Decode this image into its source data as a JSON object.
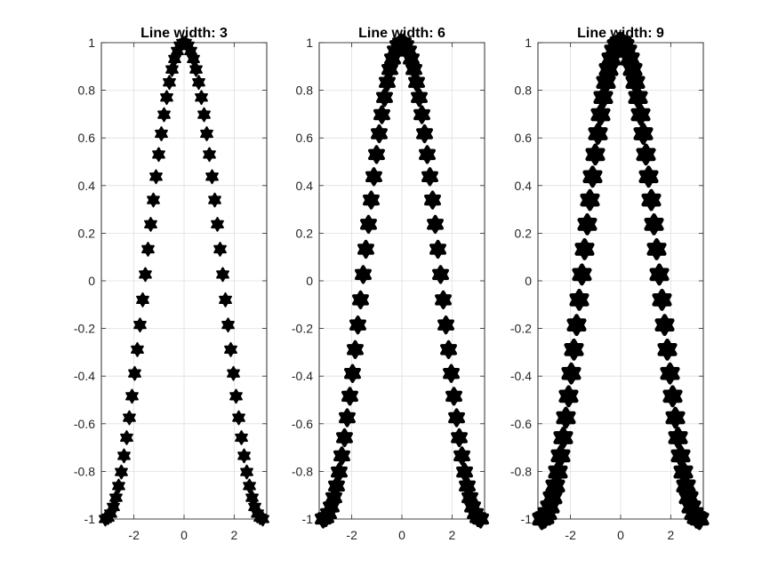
{
  "chart_data": [
    {
      "type": "scatter",
      "title": "Line width: 3",
      "xlabel": "",
      "ylabel": "",
      "xlim": [
        -3.3,
        3.3
      ],
      "ylim": [
        -1,
        1
      ],
      "xticks": [
        -2,
        0,
        2
      ],
      "yticks": [
        -1,
        -0.8,
        -0.6,
        -0.4,
        -0.2,
        0,
        0.2,
        0.4,
        0.6,
        0.8,
        1
      ],
      "grid": true,
      "marker": "hexagram",
      "marker_color": "#000000",
      "line_width": 3,
      "series": [
        {
          "function": "cos(x)",
          "x_range": [
            -3.1416,
            3.1416
          ],
          "point_count": 60
        }
      ]
    },
    {
      "type": "scatter",
      "title": "Line width: 6",
      "xlabel": "",
      "ylabel": "",
      "xlim": [
        -3.3,
        3.3
      ],
      "ylim": [
        -1,
        1
      ],
      "xticks": [
        -2,
        0,
        2
      ],
      "yticks": [
        -1,
        -0.8,
        -0.6,
        -0.4,
        -0.2,
        0,
        0.2,
        0.4,
        0.6,
        0.8,
        1
      ],
      "grid": true,
      "marker": "hexagram",
      "marker_color": "#000000",
      "line_width": 6,
      "series": [
        {
          "function": "cos(x)",
          "x_range": [
            -3.1416,
            3.1416
          ],
          "point_count": 60
        }
      ]
    },
    {
      "type": "scatter",
      "title": "Line width: 9",
      "xlabel": "",
      "ylabel": "",
      "xlim": [
        -3.3,
        3.3
      ],
      "ylim": [
        -1,
        1
      ],
      "xticks": [
        -2,
        0,
        2
      ],
      "yticks": [
        -1,
        -0.8,
        -0.6,
        -0.4,
        -0.2,
        0,
        0.2,
        0.4,
        0.6,
        0.8,
        1
      ],
      "grid": true,
      "marker": "hexagram",
      "marker_color": "#000000",
      "line_width": 9,
      "series": [
        {
          "function": "cos(x)",
          "x_range": [
            -3.1416,
            3.1416
          ],
          "point_count": 60
        }
      ]
    }
  ]
}
